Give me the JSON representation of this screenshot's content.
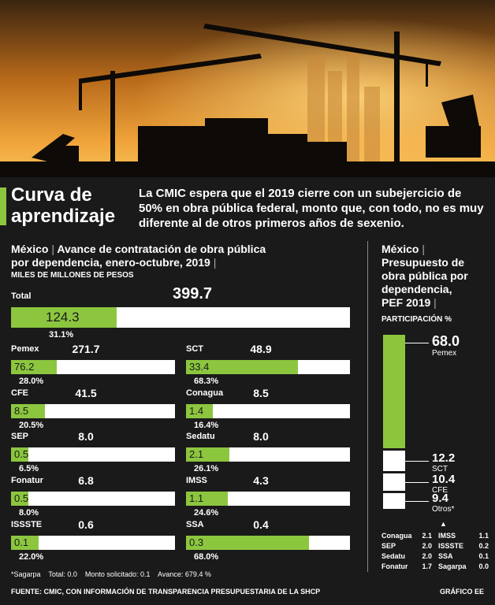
{
  "header": {
    "title_line1": "Curva de",
    "title_line2": "aprendizaje",
    "lead": "La CMIC espera que el 2019 cierre con un subejercicio de 50% en obra pública federal, monto que, con todo, no es muy diferente al de otros primeros años de sexenio."
  },
  "left_chart": {
    "country": "México",
    "title_line1": "Avance de contratación de obra pública",
    "title_line2": "por dependencia, enero-octubre, 2019",
    "units": "MILES DE MILLONES DE PESOS"
  },
  "right_chart": {
    "country": "México",
    "title_line1": "Presupuesto de",
    "title_line2": "obra pública por",
    "title_line3": "dependencia,",
    "title_line4": "PEF 2019",
    "units": "PARTICIPACIÓN %"
  },
  "notes": {
    "sagarpa": "*Sagarpa",
    "total": "Total: 0.0",
    "monto": "Monto solicitado: 0.1",
    "avance": "Avance: 679.4 %"
  },
  "footer": {
    "source": "FUENTE: CMIC, CON INFORMACIÓN DE TRANSPARENCIA PRESUPUESTARIA DE LA SHCP",
    "credit": "GRÁFICO EE"
  },
  "colors": {
    "accent": "#8cc63f",
    "background": "#1a1a1a",
    "bar_track": "#ffffff"
  },
  "chart_data": [
    {
      "type": "bar",
      "series": [
        {
          "name": "Total",
          "total": "399.7",
          "contracted": "124.3",
          "pct": "31.1%"
        },
        {
          "name": "Pemex",
          "total": "271.7",
          "contracted": "76.2",
          "pct": "28.0%"
        },
        {
          "name": "SCT",
          "total": "48.9",
          "contracted": "33.4",
          "pct": "68.3%"
        },
        {
          "name": "CFE",
          "total": "41.5",
          "contracted": "8.5",
          "pct": "20.5%"
        },
        {
          "name": "Conagua",
          "total": "8.5",
          "contracted": "1.4",
          "pct": "16.4%"
        },
        {
          "name": "SEP",
          "total": "8.0",
          "contracted": "0.5",
          "pct": "6.5%"
        },
        {
          "name": "Sedatu",
          "total": "8.0",
          "contracted": "2.1",
          "pct": "26.1%"
        },
        {
          "name": "Fonatur",
          "total": "6.8",
          "contracted": "0.5",
          "pct": "8.0%"
        },
        {
          "name": "IMSS",
          "total": "4.3",
          "contracted": "1.1",
          "pct": "24.6%"
        },
        {
          "name": "ISSSTE",
          "total": "0.6",
          "contracted": "0.1",
          "pct": "22.0%"
        },
        {
          "name": "SSA",
          "total": "0.4",
          "contracted": "0.3",
          "pct": "68.0%"
        }
      ]
    },
    {
      "type": "bar",
      "stacked": true,
      "categories": [
        "Pemex",
        "SCT",
        "CFE",
        "Otros*"
      ],
      "values": [
        68.0,
        12.2,
        10.4,
        9.4
      ],
      "value_labels": [
        "68.0",
        "12.2",
        "10.4",
        "9.4"
      ],
      "others": [
        {
          "name": "Conagua",
          "value": "2.1"
        },
        {
          "name": "IMSS",
          "value": "1.1"
        },
        {
          "name": "SEP",
          "value": "2.0"
        },
        {
          "name": "ISSSTE",
          "value": "0.2"
        },
        {
          "name": "Sedatu",
          "value": "2.0"
        },
        {
          "name": "SSA",
          "value": "0.1"
        },
        {
          "name": "Fonatur",
          "value": "1.7"
        },
        {
          "name": "Sagarpa",
          "value": "0.0"
        }
      ]
    }
  ]
}
